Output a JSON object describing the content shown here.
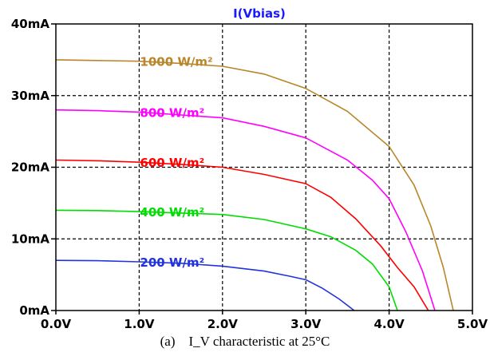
{
  "chart_data": {
    "type": "line",
    "title": "I(Vbias)",
    "title_color": "#1a1aff",
    "xlabel": "",
    "ylabel": "",
    "xlim": [
      0,
      5
    ],
    "ylim": [
      0,
      40
    ],
    "grid": true,
    "x_ticks": [
      0,
      1,
      2,
      3,
      4,
      5
    ],
    "x_tick_labels": [
      "0.0V",
      "1.0V",
      "2.0V",
      "3.0V",
      "4.0V",
      "5.0V"
    ],
    "y_ticks": [
      0,
      10,
      20,
      30,
      40
    ],
    "y_tick_labels": [
      "0mA",
      "10mA",
      "20mA",
      "30mA",
      "40mA"
    ],
    "series": [
      {
        "name": "1000 W/m²",
        "color": "#b8862b",
        "points": [
          [
            0,
            35.0
          ],
          [
            0.5,
            34.9
          ],
          [
            1.0,
            34.8
          ],
          [
            1.5,
            34.5
          ],
          [
            2.0,
            34.1
          ],
          [
            2.5,
            33.0
          ],
          [
            3.0,
            31.0
          ],
          [
            3.5,
            27.8
          ],
          [
            4.0,
            22.9
          ],
          [
            4.3,
            17.5
          ],
          [
            4.5,
            11.8
          ],
          [
            4.65,
            6.0
          ],
          [
            4.77,
            0
          ]
        ]
      },
      {
        "name": "800 W/m²",
        "color": "#ff00ff",
        "points": [
          [
            0,
            28.0
          ],
          [
            0.5,
            27.9
          ],
          [
            1.0,
            27.7
          ],
          [
            1.5,
            27.3
          ],
          [
            2.0,
            26.9
          ],
          [
            2.5,
            25.7
          ],
          [
            3.0,
            24.1
          ],
          [
            3.5,
            21.0
          ],
          [
            3.8,
            18.2
          ],
          [
            4.0,
            15.6
          ],
          [
            4.2,
            11.0
          ],
          [
            4.4,
            5.5
          ],
          [
            4.55,
            0
          ]
        ]
      },
      {
        "name": "600 W/m²",
        "color": "#ff0000",
        "points": [
          [
            0,
            21.0
          ],
          [
            0.5,
            20.9
          ],
          [
            1.0,
            20.7
          ],
          [
            1.5,
            20.4
          ],
          [
            2.0,
            20.0
          ],
          [
            2.5,
            19.0
          ],
          [
            3.0,
            17.7
          ],
          [
            3.3,
            15.8
          ],
          [
            3.6,
            12.8
          ],
          [
            3.9,
            9.0
          ],
          [
            4.1,
            6.0
          ],
          [
            4.3,
            3.3
          ],
          [
            4.47,
            0
          ]
        ]
      },
      {
        "name": "400 W/m²",
        "color": "#00dd00",
        "points": [
          [
            0,
            14.0
          ],
          [
            0.5,
            13.95
          ],
          [
            1.0,
            13.8
          ],
          [
            1.5,
            13.6
          ],
          [
            2.0,
            13.4
          ],
          [
            2.5,
            12.7
          ],
          [
            3.0,
            11.4
          ],
          [
            3.3,
            10.3
          ],
          [
            3.6,
            8.4
          ],
          [
            3.8,
            6.5
          ],
          [
            4.0,
            3.3
          ],
          [
            4.1,
            0
          ]
        ]
      },
      {
        "name": "200 W/m²",
        "color": "#2233dd",
        "points": [
          [
            0,
            7.0
          ],
          [
            0.5,
            6.95
          ],
          [
            1.0,
            6.8
          ],
          [
            1.5,
            6.6
          ],
          [
            2.0,
            6.2
          ],
          [
            2.5,
            5.5
          ],
          [
            2.8,
            4.8
          ],
          [
            3.0,
            4.3
          ],
          [
            3.2,
            3.1
          ],
          [
            3.4,
            1.6
          ],
          [
            3.58,
            0
          ]
        ]
      }
    ]
  },
  "caption": "(a)    I_V characteristic at 25°C"
}
